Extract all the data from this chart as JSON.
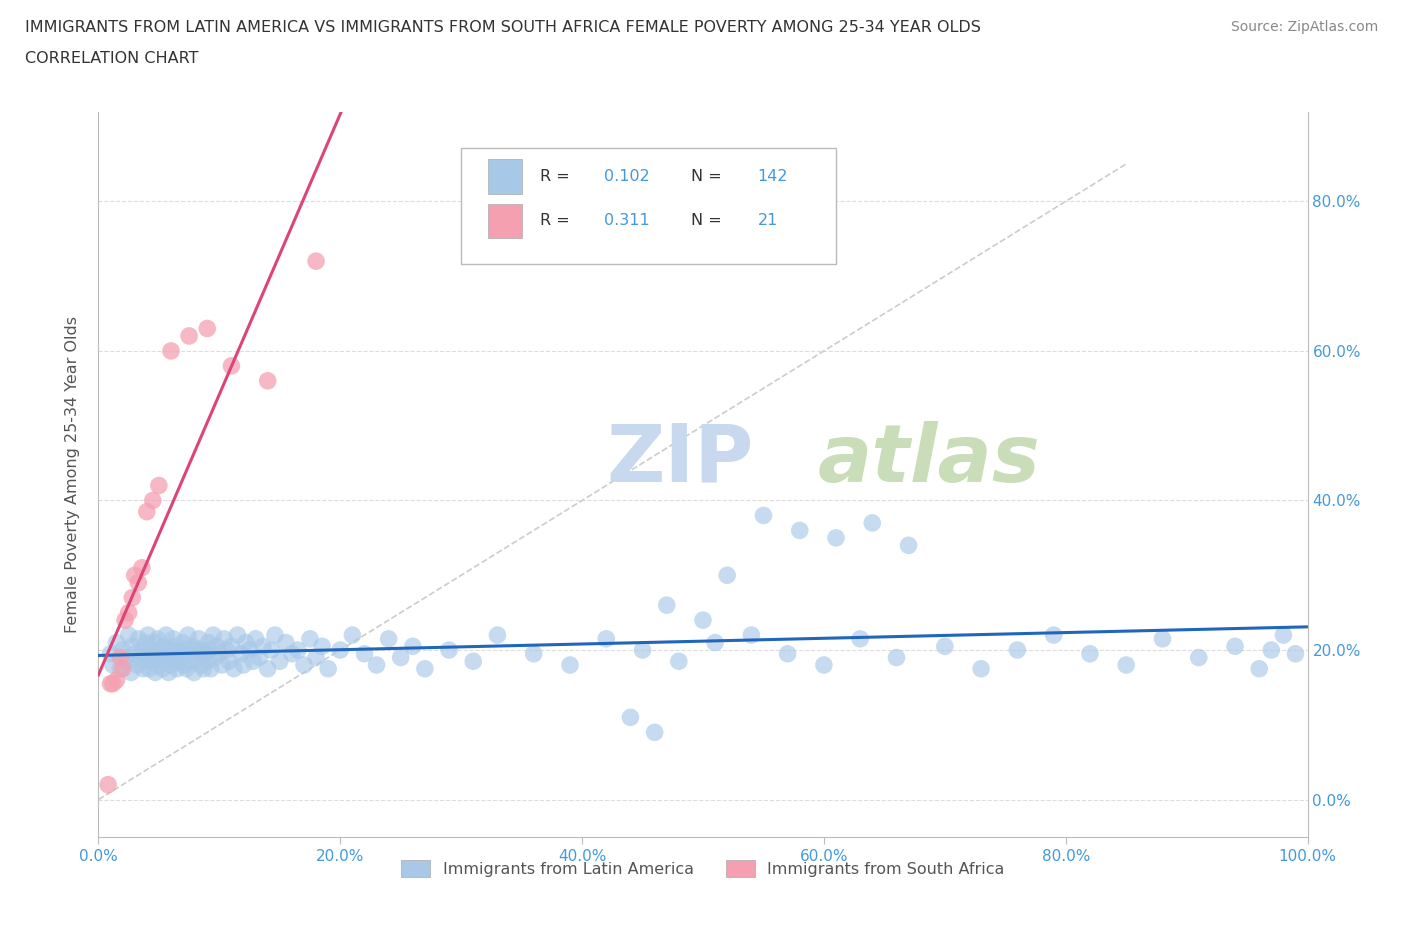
{
  "title_line1": "IMMIGRANTS FROM LATIN AMERICA VS IMMIGRANTS FROM SOUTH AFRICA FEMALE POVERTY AMONG 25-34 YEAR OLDS",
  "title_line2": "CORRELATION CHART",
  "source_text": "Source: ZipAtlas.com",
  "ylabel": "Female Poverty Among 25-34 Year Olds",
  "xlim": [
    0.0,
    1.0
  ],
  "ylim": [
    -0.05,
    0.92
  ],
  "xticks": [
    0.0,
    0.2,
    0.4,
    0.6,
    0.8,
    1.0
  ],
  "xtick_labels": [
    "0.0%",
    "20.0%",
    "40.0%",
    "60.0%",
    "80.0%",
    "100.0%"
  ],
  "yticks": [
    0.0,
    0.2,
    0.4,
    0.6,
    0.8
  ],
  "ytick_labels_right": [
    "0.0%",
    "20.0%",
    "40.0%",
    "60.0%",
    "80.0%"
  ],
  "R_blue": 0.102,
  "N_blue": 142,
  "R_pink": 0.311,
  "N_pink": 21,
  "blue_color": "#a8c8e8",
  "pink_color": "#f4a0b0",
  "blue_line_color": "#2266bb",
  "pink_line_color": "#dd4477",
  "diag_line_color": "#cccccc",
  "grid_color": "#dddddd",
  "title_color": "#333333",
  "axis_label_color": "#4499dd",
  "watermark_color": "#c8d8ee",
  "legend_border_color": "#bbbbbb",
  "blue_scatter_x": [
    0.01,
    0.012,
    0.015,
    0.018,
    0.02,
    0.022,
    0.024,
    0.025,
    0.027,
    0.028,
    0.03,
    0.032,
    0.033,
    0.035,
    0.036,
    0.037,
    0.038,
    0.039,
    0.04,
    0.041,
    0.042,
    0.043,
    0.044,
    0.045,
    0.046,
    0.047,
    0.048,
    0.049,
    0.05,
    0.051,
    0.052,
    0.053,
    0.054,
    0.055,
    0.056,
    0.057,
    0.058,
    0.059,
    0.06,
    0.062,
    0.063,
    0.064,
    0.065,
    0.066,
    0.067,
    0.068,
    0.07,
    0.071,
    0.072,
    0.073,
    0.074,
    0.075,
    0.076,
    0.078,
    0.079,
    0.08,
    0.082,
    0.083,
    0.085,
    0.086,
    0.087,
    0.088,
    0.09,
    0.091,
    0.092,
    0.093,
    0.095,
    0.096,
    0.098,
    0.1,
    0.102,
    0.104,
    0.106,
    0.108,
    0.11,
    0.112,
    0.115,
    0.118,
    0.12,
    0.122,
    0.125,
    0.128,
    0.13,
    0.133,
    0.136,
    0.14,
    0.143,
    0.146,
    0.15,
    0.155,
    0.16,
    0.165,
    0.17,
    0.175,
    0.18,
    0.185,
    0.19,
    0.2,
    0.21,
    0.22,
    0.23,
    0.24,
    0.25,
    0.26,
    0.27,
    0.29,
    0.31,
    0.33,
    0.36,
    0.39,
    0.42,
    0.45,
    0.48,
    0.51,
    0.54,
    0.57,
    0.6,
    0.63,
    0.66,
    0.7,
    0.73,
    0.76,
    0.79,
    0.82,
    0.85,
    0.88,
    0.91,
    0.94,
    0.96,
    0.97,
    0.98,
    0.99,
    0.52,
    0.55,
    0.58,
    0.61,
    0.64,
    0.67,
    0.47,
    0.5,
    0.46,
    0.44
  ],
  "blue_scatter_y": [
    0.195,
    0.18,
    0.21,
    0.175,
    0.2,
    0.19,
    0.185,
    0.22,
    0.17,
    0.205,
    0.195,
    0.18,
    0.215,
    0.19,
    0.2,
    0.175,
    0.185,
    0.21,
    0.195,
    0.22,
    0.175,
    0.19,
    0.2,
    0.185,
    0.21,
    0.17,
    0.195,
    0.215,
    0.18,
    0.2,
    0.19,
    0.175,
    0.205,
    0.185,
    0.22,
    0.195,
    0.17,
    0.2,
    0.18,
    0.215,
    0.19,
    0.205,
    0.175,
    0.2,
    0.185,
    0.195,
    0.21,
    0.18,
    0.2,
    0.175,
    0.22,
    0.195,
    0.185,
    0.205,
    0.17,
    0.2,
    0.19,
    0.215,
    0.18,
    0.2,
    0.175,
    0.195,
    0.185,
    0.21,
    0.2,
    0.175,
    0.22,
    0.19,
    0.205,
    0.195,
    0.18,
    0.215,
    0.2,
    0.185,
    0.205,
    0.175,
    0.22,
    0.195,
    0.18,
    0.21,
    0.2,
    0.185,
    0.215,
    0.19,
    0.205,
    0.175,
    0.2,
    0.22,
    0.185,
    0.21,
    0.195,
    0.2,
    0.18,
    0.215,
    0.19,
    0.205,
    0.175,
    0.2,
    0.22,
    0.195,
    0.18,
    0.215,
    0.19,
    0.205,
    0.175,
    0.2,
    0.185,
    0.22,
    0.195,
    0.18,
    0.215,
    0.2,
    0.185,
    0.21,
    0.22,
    0.195,
    0.18,
    0.215,
    0.19,
    0.205,
    0.175,
    0.2,
    0.22,
    0.195,
    0.18,
    0.215,
    0.19,
    0.205,
    0.175,
    0.2,
    0.22,
    0.195,
    0.3,
    0.38,
    0.36,
    0.35,
    0.37,
    0.34,
    0.26,
    0.24,
    0.09,
    0.11
  ],
  "pink_scatter_x": [
    0.008,
    0.01,
    0.012,
    0.015,
    0.018,
    0.02,
    0.022,
    0.025,
    0.028,
    0.03,
    0.033,
    0.036,
    0.04,
    0.045,
    0.05,
    0.06,
    0.075,
    0.09,
    0.11,
    0.14,
    0.18
  ],
  "pink_scatter_y": [
    0.02,
    0.155,
    0.155,
    0.16,
    0.19,
    0.175,
    0.24,
    0.25,
    0.27,
    0.3,
    0.29,
    0.31,
    0.385,
    0.4,
    0.42,
    0.6,
    0.62,
    0.63,
    0.58,
    0.56,
    0.72
  ]
}
